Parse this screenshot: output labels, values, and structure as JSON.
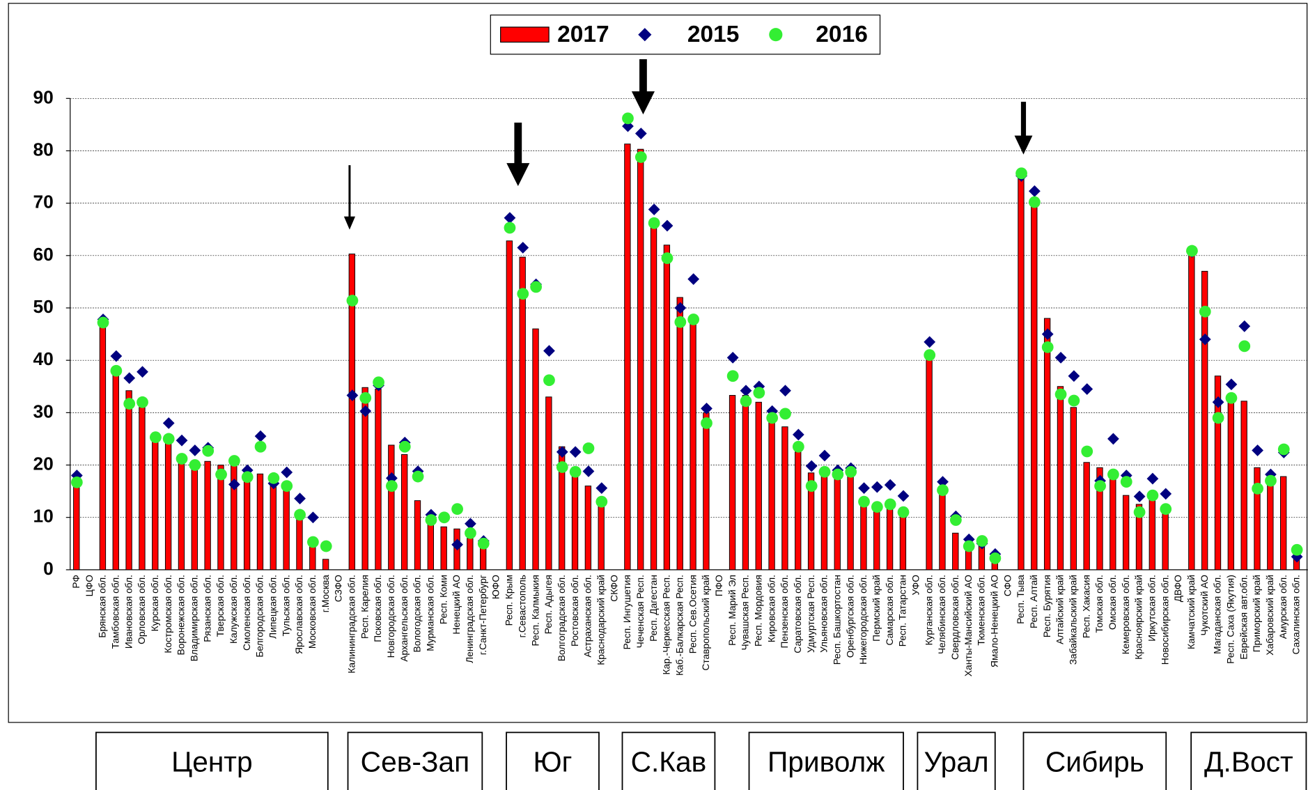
{
  "chart_data": {
    "type": "bar",
    "ylim": [
      0,
      90
    ],
    "yticks": [
      0,
      10,
      20,
      30,
      40,
      50,
      60,
      70,
      80,
      90
    ],
    "grid": true,
    "legend": "top",
    "categories": [
      "РФ",
      "ЦФО",
      "Брянская обл.",
      "Тамбовская обл.",
      "Ивановская обл.",
      "Орловская обл.",
      "Курская обл.",
      "Костромская обл.",
      "Воронежская обл.",
      "Владимирская обл.",
      "Рязанская обл.",
      "Тверская обл.",
      "Калужская обл.",
      "Смоленская обл.",
      "Белгородская обл.",
      "Липецкая обл.",
      "Тульская обл.",
      "Ярославская обл.",
      "Московская обл.",
      "г.Москва",
      "СЗФО",
      "Калининградская обл.",
      "Респ. Карелия",
      "Псковская обл.",
      "Новгородская обл.",
      "Архангельская обл.",
      "Вологодская обл.",
      "Мурманская обл.",
      "Респ. Коми",
      "Ненецкий АО",
      "Ленинградская обл.",
      "г.Санкт-Петербург",
      "ЮФО",
      "Респ. Крым",
      "г.Севастополь",
      "Респ. Калмыкия",
      "Респ. Адыгея",
      "Волгоградская обл.",
      "Ростовская обл.",
      "Астраханская обл.",
      "Краснодарский край",
      "СКФО",
      "Респ. Ингушетия",
      "Чеченская Респ.",
      "Респ. Дагестан",
      "Кар.-Черкесская Респ.",
      "Каб.-Балкарская Респ.",
      "Респ. Сев.Осетия",
      "Ставропольский край",
      "ПФО",
      "Респ. Марий Эл",
      "Чувашская Респ.",
      "Респ. Мордовия",
      "Кировская обл.",
      "Пензенская обл.",
      "Саратовская обл.",
      "Удмуртская Респ.",
      "Ульяновская обл.",
      "Респ. Башкортостан",
      "Оренбургская обл.",
      "Нижегородская обл.",
      "Пермский край",
      "Самарская обл.",
      "Респ. Татарстан",
      "УФО",
      "Курганская обл.",
      "Челябинская обл.",
      "Свердловская обл.",
      "Ханты-Мансийский АО",
      "Тюменская обл.",
      "Ямало-Ненецкий АО",
      "СФО",
      "Респ. Тыва",
      "Респ. Алтай",
      "Респ. Бурятия",
      "Алтайский край",
      "Забайкальский край",
      "Респ. Хакасия",
      "Томская обл.",
      "Омская обл.",
      "Кемеровская обл.",
      "Красноярский край",
      "Иркутская обл.",
      "Новосибирская обл.",
      "ДВФО",
      "Камчатский край",
      "Чукотский АО",
      "Магаданская обл.",
      "Респ. Саха (Якутия)",
      "Еврейская авт.обл.",
      "Приморский край",
      "Хабаровский край",
      "Амурская обл.",
      "Сахалинская обл."
    ],
    "series": [
      {
        "name": "2017",
        "color": "#ff0000",
        "marker": "bar",
        "values": [
          17.5,
          null,
          47.5,
          37.5,
          34.2,
          31,
          25.3,
          24.5,
          21,
          20,
          20.7,
          20,
          20.5,
          17.5,
          18.3,
          16.5,
          15.5,
          11,
          5.5,
          2,
          null,
          60.3,
          34.8,
          34.5,
          23.8,
          22,
          13.2,
          9.5,
          8.2,
          7.8,
          6,
          4.5,
          null,
          62.8,
          59.7,
          46,
          33,
          23.5,
          19.5,
          16,
          13.5,
          null,
          81.3,
          80.3,
          66,
          62,
          52,
          47,
          30,
          null,
          33.3,
          33.3,
          32,
          29,
          27.3,
          22.5,
          18.5,
          18.8,
          18,
          18.2,
          13.5,
          12.5,
          12,
          11,
          null,
          40.8,
          15.2,
          7,
          5,
          5.7,
          2.5,
          null,
          75.5,
          70.5,
          48,
          35,
          31,
          20.5,
          19.5,
          18.2,
          14.2,
          12.5,
          13.5,
          11.5,
          null,
          61,
          57,
          37,
          33,
          32.2,
          19.5,
          17,
          17.8,
          3
        ]
      },
      {
        "name": "2015",
        "color": "#000080",
        "marker": "diamond",
        "values": [
          18,
          null,
          47.8,
          40.8,
          36.6,
          37.8,
          25.3,
          28,
          24.7,
          22.8,
          23.3,
          18.3,
          16.3,
          19,
          25.5,
          16.5,
          18.6,
          13.6,
          10,
          4.5,
          null,
          33.3,
          30.3,
          35.2,
          17.5,
          24.3,
          18.8,
          10.5,
          10,
          4.8,
          8.8,
          5.5,
          null,
          67.2,
          61.5,
          54.5,
          41.8,
          22.5,
          22.5,
          18.8,
          15.6,
          null,
          84.7,
          83.3,
          68.8,
          65.7,
          50,
          55.5,
          30.8,
          null,
          40.5,
          34.2,
          35,
          30.3,
          34.2,
          25.8,
          19.8,
          21.8,
          19,
          19.4,
          15.6,
          15.8,
          16.2,
          14.1,
          null,
          43.5,
          16.8,
          10.2,
          5.8,
          5,
          3,
          null,
          75.2,
          72.3,
          45,
          40.5,
          37,
          34.5,
          17,
          25,
          18,
          14,
          17.4,
          14.5,
          null,
          60.7,
          44,
          32,
          35.4,
          46.5,
          22.8,
          18.2,
          22.4,
          2.5
        ]
      },
      {
        "name": "2016",
        "color": "#33ee33",
        "marker": "circle",
        "values": [
          16.7,
          null,
          47.2,
          38,
          31.7,
          32,
          25.3,
          25,
          21.2,
          20,
          22.7,
          18.2,
          20.8,
          17.7,
          23.5,
          17.5,
          16,
          10.5,
          5.3,
          4.5,
          null,
          51.4,
          32.8,
          35.8,
          16,
          23.5,
          17.8,
          9.5,
          10,
          11.6,
          7,
          5,
          null,
          65.3,
          52.7,
          54,
          36.2,
          19.6,
          18.7,
          23.2,
          13,
          null,
          86.2,
          78.8,
          66.2,
          59.5,
          47.3,
          47.8,
          28,
          null,
          37,
          32.2,
          33.8,
          29,
          29.8,
          23.5,
          16,
          18.7,
          18.2,
          18.7,
          13,
          12,
          12.5,
          11,
          null,
          41,
          15.2,
          9.5,
          4.5,
          5.5,
          2.2,
          null,
          75.7,
          70.2,
          42.5,
          33.5,
          32.3,
          22.6,
          16,
          18.2,
          16.8,
          11,
          14.2,
          11.6,
          null,
          60.9,
          49.3,
          29,
          32.8,
          42.7,
          15.5,
          17,
          23,
          3.8
        ]
      }
    ],
    "groups": [
      "Центр",
      "Сев-Зап",
      "Юг",
      "С.Кав",
      "Приволж",
      "Урал",
      "Сибирь",
      "Д.Вост"
    ]
  }
}
